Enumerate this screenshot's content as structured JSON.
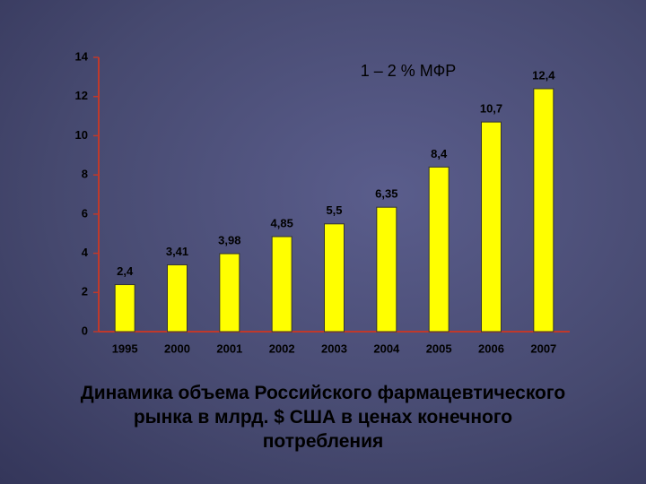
{
  "chart_data": {
    "type": "bar",
    "title": [
      "Динамика объема Российского фармацевтического",
      "рынка в млрд. $ США в ценах конечного",
      "потребления"
    ],
    "annotation": "1 – 2 % МФР",
    "categories": [
      "1995",
      "2000",
      "2001",
      "2002",
      "2003",
      "2004",
      "2005",
      "2006",
      "2007"
    ],
    "values": [
      2.4,
      3.41,
      3.98,
      4.85,
      5.5,
      6.35,
      8.4,
      10.7,
      12.4
    ],
    "value_labels": [
      "2,4",
      "3,41",
      "3,98",
      "4,85",
      "5,5",
      "6,35",
      "8,4",
      "10,7",
      "12,4"
    ],
    "color": "#ffff00",
    "ylim": [
      0,
      14
    ],
    "yticks": [
      0,
      2,
      4,
      6,
      8,
      10,
      12,
      14
    ],
    "grid": false
  }
}
